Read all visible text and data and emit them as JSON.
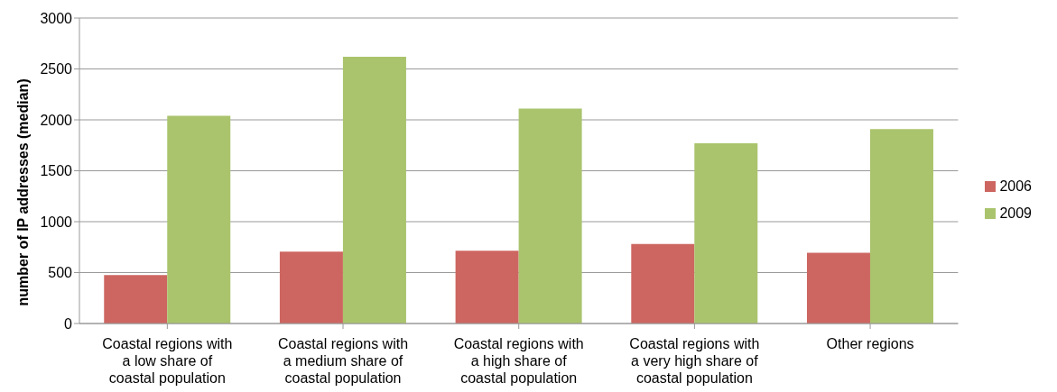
{
  "chart_data": {
    "type": "bar",
    "ylabel": "number of IP addresses (median)",
    "categories": [
      "Coastal regions with a low share of coastal population",
      "Coastal regions with a medium share of coastal population",
      "Coastal regions with a high share of coastal population",
      "Coastal regions with a very high share of coastal population",
      "Other regions"
    ],
    "series": [
      {
        "name": "2006",
        "color": "#cd6661",
        "values": [
          475,
          705,
          715,
          780,
          695
        ]
      },
      {
        "name": "2009",
        "color": "#aac46d",
        "values": [
          2040,
          2620,
          2110,
          1770,
          1910
        ]
      }
    ],
    "ylim": [
      0,
      3000
    ],
    "yticks": [
      0,
      500,
      1000,
      1500,
      2000,
      2500,
      3000
    ],
    "grid": "y",
    "legend": "right"
  }
}
